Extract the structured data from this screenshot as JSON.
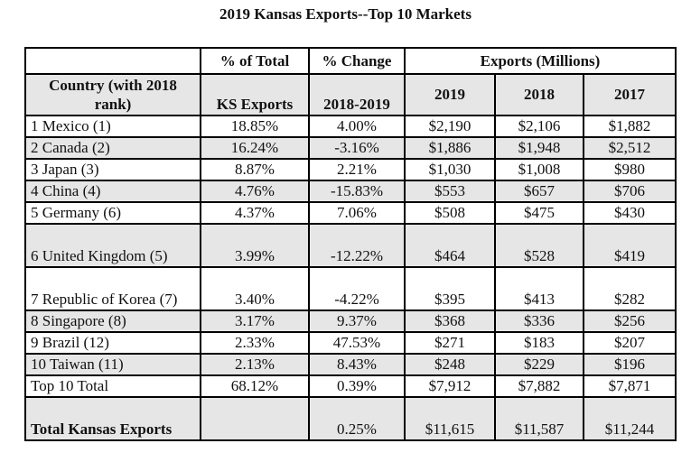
{
  "title": "2019 Kansas Exports--Top 10 Markets",
  "header_top": {
    "blank": "",
    "pct_total": "% of Total",
    "pct_change": "% Change",
    "exports": "Exports (Millions)"
  },
  "header_sub": {
    "country": "Country (with 2018 rank)",
    "ks_exports": "KS Exports",
    "period": "2018-2019",
    "y2019": "2019",
    "y2018": "2018",
    "y2017": "2017"
  },
  "rows": [
    {
      "country": "1 Mexico (1)",
      "pct_total": "18.85%",
      "pct_change": "4.00%",
      "y2019": "$2,190",
      "y2018": "$2,106",
      "y2017": "$1,882"
    },
    {
      "country": "2 Canada (2)",
      "pct_total": "16.24%",
      "pct_change": "-3.16%",
      "y2019": "$1,886",
      "y2018": "$1,948",
      "y2017": "$2,512"
    },
    {
      "country": "3 Japan (3)",
      "pct_total": "8.87%",
      "pct_change": "2.21%",
      "y2019": "$1,030",
      "y2018": "$1,008",
      "y2017": "$980"
    },
    {
      "country": "4 China (4)",
      "pct_total": "4.76%",
      "pct_change": "-15.83%",
      "y2019": "$553",
      "y2018": "$657",
      "y2017": "$706"
    },
    {
      "country": "5 Germany (6)",
      "pct_total": "4.37%",
      "pct_change": "7.06%",
      "y2019": "$508",
      "y2018": "$475",
      "y2017": "$430"
    },
    {
      "country": "6 United Kingdom (5)",
      "pct_total": "3.99%",
      "pct_change": "-12.22%",
      "y2019": "$464",
      "y2018": "$528",
      "y2017": "$419"
    },
    {
      "country": "7 Republic of Korea (7)",
      "pct_total": "3.40%",
      "pct_change": "-4.22%",
      "y2019": "$395",
      "y2018": "$413",
      "y2017": "$282"
    },
    {
      "country": "8 Singapore (8)",
      "pct_total": "3.17%",
      "pct_change": "9.37%",
      "y2019": "$368",
      "y2018": "$336",
      "y2017": "$256"
    },
    {
      "country": "9 Brazil (12)",
      "pct_total": "2.33%",
      "pct_change": "47.53%",
      "y2019": "$271",
      "y2018": "$183",
      "y2017": "$207"
    },
    {
      "country": "10 Taiwan (11)",
      "pct_total": "2.13%",
      "pct_change": "8.43%",
      "y2019": "$248",
      "y2018": "$229",
      "y2017": "$196"
    },
    {
      "country": "Top 10 Total",
      "pct_total": "68.12%",
      "pct_change": "0.39%",
      "y2019": "$7,912",
      "y2018": "$7,882",
      "y2017": "$7,871"
    },
    {
      "country": "Total Kansas Exports",
      "pct_total": "",
      "pct_change": "0.25%",
      "y2019": "$11,615",
      "y2018": "$11,587",
      "y2017": "$11,244"
    }
  ]
}
